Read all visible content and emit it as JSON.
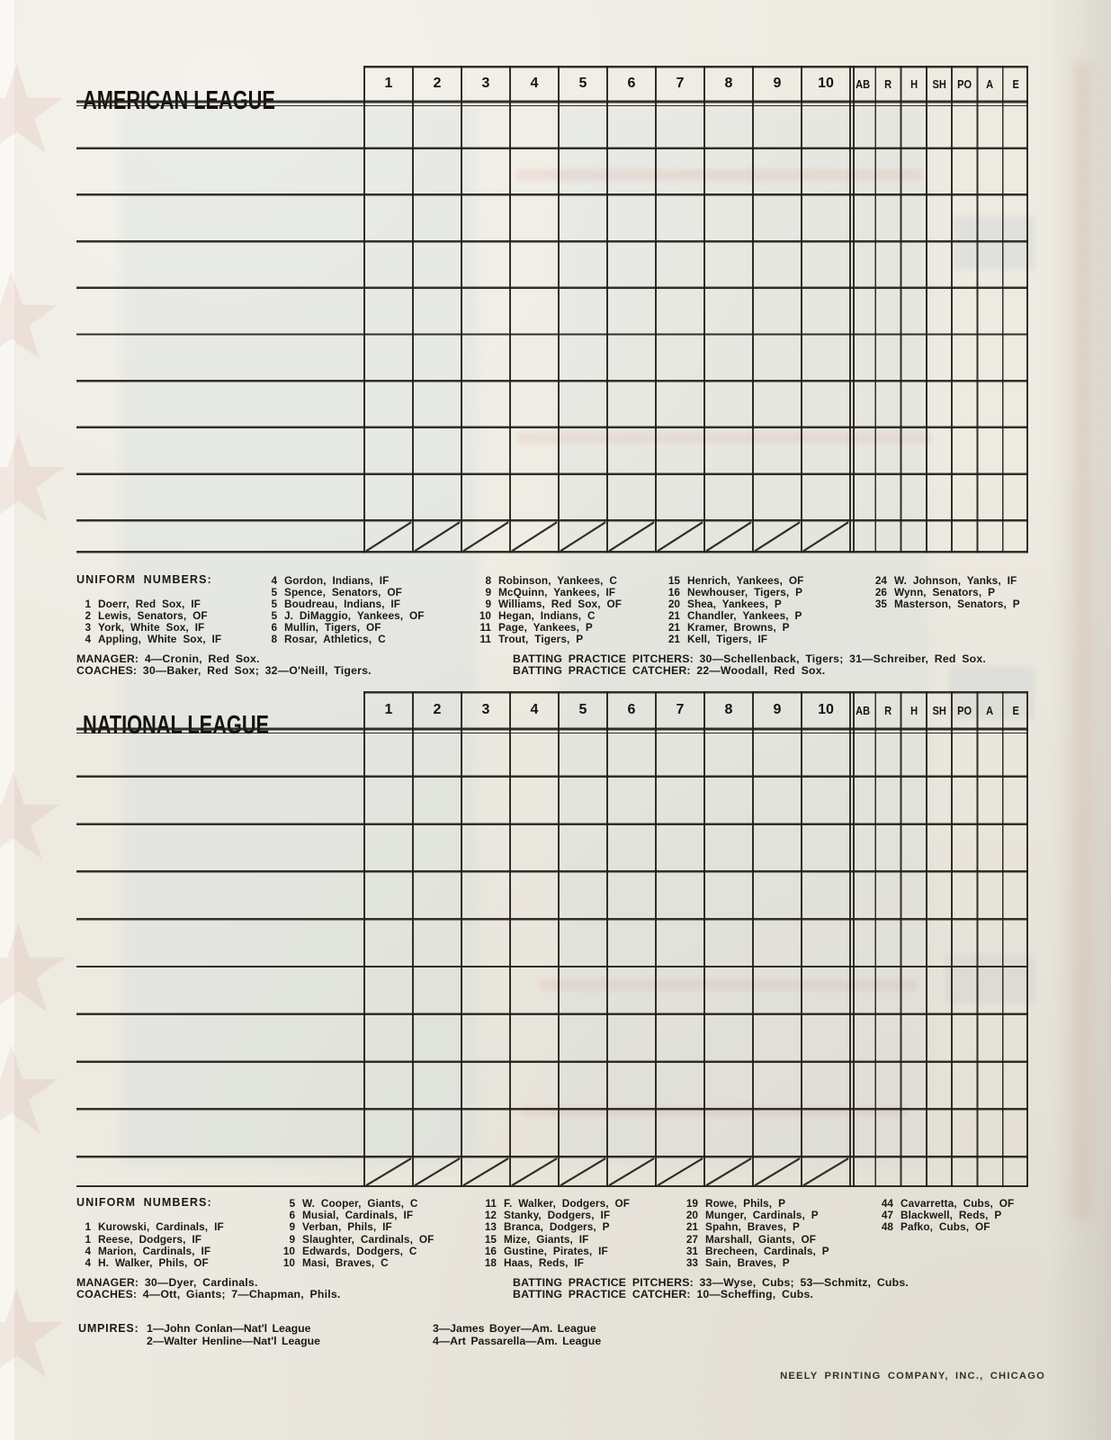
{
  "columns": [
    "1",
    "2",
    "3",
    "4",
    "5",
    "6",
    "7",
    "8",
    "9",
    "10",
    "AB",
    "R",
    "H",
    "SH",
    "PO",
    "A",
    "E"
  ],
  "american": {
    "title": "AMERICAN LEAGUE",
    "uniform_numbers": {
      "label": "UNIFORM NUMBERS:",
      "columns": [
        [
          [
            "1",
            "Doerr, Red Sox, IF"
          ],
          [
            "2",
            "Lewis, Senators, OF"
          ],
          [
            "3",
            "York, White Sox, IF"
          ],
          [
            "4",
            "Appling, White Sox, IF"
          ]
        ],
        [
          [
            "4",
            "Gordon, Indians, IF"
          ],
          [
            "5",
            "Spence, Senators, OF"
          ],
          [
            "5",
            "Boudreau, Indians, IF"
          ],
          [
            "5",
            "J. DiMaggio, Yankees, OF"
          ],
          [
            "6",
            "Mullin, Tigers, OF"
          ],
          [
            "8",
            "Rosar, Athletics, C"
          ]
        ],
        [
          [
            "8",
            "Robinson, Yankees, C"
          ],
          [
            "9",
            "McQuinn, Yankees, IF"
          ],
          [
            "9",
            "Williams, Red Sox, OF"
          ],
          [
            "10",
            "Hegan, Indians, C"
          ],
          [
            "11",
            "Page, Yankees, P"
          ],
          [
            "11",
            "Trout, Tigers, P"
          ]
        ],
        [
          [
            "15",
            "Henrich, Yankees, OF"
          ],
          [
            "16",
            "Newhouser, Tigers, P"
          ],
          [
            "20",
            "Shea, Yankees, P"
          ],
          [
            "21",
            "Chandler, Yankees, P"
          ],
          [
            "21",
            "Kramer, Browns, P"
          ],
          [
            "21",
            "Kell, Tigers, IF"
          ]
        ],
        [
          [
            "24",
            "W. Johnson, Yanks, IF"
          ],
          [
            "26",
            "Wynn, Senators, P"
          ],
          [
            "35",
            "Masterson, Senators, P"
          ]
        ]
      ]
    },
    "manager": "MANAGER: 4—Cronin, Red Sox.",
    "coaches": "COACHES: 30—Baker, Red Sox; 32—O'Neill, Tigers.",
    "bp_pitchers": "BATTING PRACTICE PITCHERS: 30—Schellenback, Tigers; 31—Schreiber, Red Sox.",
    "bp_catcher": "BATTING PRACTICE CATCHER: 22—Woodall, Red Sox."
  },
  "national": {
    "title": "NATIONAL LEAGUE",
    "uniform_numbers": {
      "label": "UNIFORM NUMBERS:",
      "columns": [
        [
          [
            "1",
            "Kurowski, Cardinals, IF"
          ],
          [
            "1",
            "Reese, Dodgers, IF"
          ],
          [
            "4",
            "Marion, Cardinals, IF"
          ],
          [
            "4",
            "H. Walker, Phils, OF"
          ]
        ],
        [
          [
            "5",
            "W. Cooper, Giants, C"
          ],
          [
            "6",
            "Musial, Cardinals, IF"
          ],
          [
            "9",
            "Verban, Phils, IF"
          ],
          [
            "9",
            "Slaughter, Cardinals, OF"
          ],
          [
            "10",
            "Edwards, Dodgers, C"
          ],
          [
            "10",
            "Masi, Braves, C"
          ]
        ],
        [
          [
            "11",
            "F. Walker, Dodgers, OF"
          ],
          [
            "12",
            "Stanky, Dodgers, IF"
          ],
          [
            "13",
            "Branca, Dodgers, P"
          ],
          [
            "15",
            "Mize, Giants, IF"
          ],
          [
            "16",
            "Gustine, Pirates, IF"
          ],
          [
            "18",
            "Haas, Reds, IF"
          ]
        ],
        [
          [
            "19",
            "Rowe, Phils, P"
          ],
          [
            "20",
            "Munger, Cardinals, P"
          ],
          [
            "21",
            "Spahn, Braves, P"
          ],
          [
            "27",
            "Marshall, Giants, OF"
          ],
          [
            "31",
            "Brecheen, Cardinals, P"
          ],
          [
            "33",
            "Sain, Braves, P"
          ]
        ],
        [
          [
            "44",
            "Cavarretta, Cubs, OF"
          ],
          [
            "47",
            "Blackwell, Reds, P"
          ],
          [
            "48",
            "Pafko, Cubs, OF"
          ]
        ]
      ]
    },
    "manager": "MANAGER: 30—Dyer, Cardinals.",
    "coaches": "COACHES: 4—Ott, Giants; 7—Chapman, Phils.",
    "bp_pitchers": "BATTING PRACTICE PITCHERS: 33—Wyse, Cubs; 53—Schmitz, Cubs.",
    "bp_catcher": "BATTING PRACTICE CATCHER: 10—Scheffing, Cubs."
  },
  "umpires": {
    "label": "UMPIRES:",
    "columns": [
      [
        "1—John Conlan—Nat'l League",
        "2—Walter Henline—Nat'l League"
      ],
      [
        "3—James Boyer—Am. League",
        "4—Art Passarella—Am. League"
      ]
    ]
  },
  "footer": "NEELY PRINTING COMPANY, INC., CHICAGO",
  "colors": {
    "paper": "#edeae1",
    "ink": "#1c1915",
    "star_pink": "#ce8a7e",
    "bleed_blue": "#b9cddc"
  }
}
